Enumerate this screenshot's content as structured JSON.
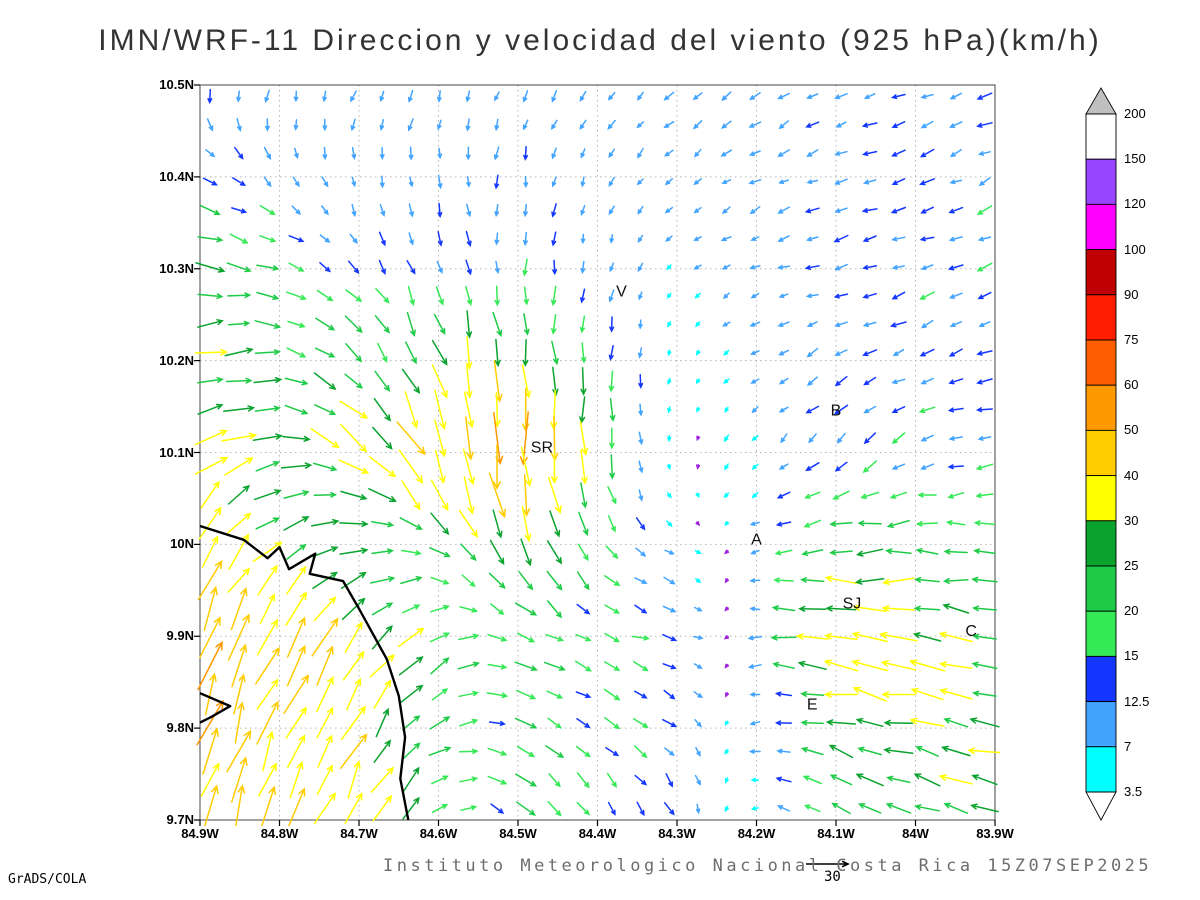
{
  "page": {
    "title": "IMN/WRF-11 Direccion y velocidad del viento (925 hPa)(km/h)",
    "caption": "Instituto Meteorologico Nacional Costa Rica 15Z07SEP2025",
    "credit": "GrADS/COLA"
  },
  "chart_data": {
    "type": "vector_field",
    "title": "IMN/WRF-11 Direccion y velocidad del viento (925 hPa)(km/h)",
    "model": "IMN/WRF-11",
    "variable": "Direccion y velocidad del viento",
    "level": "925 hPa",
    "units": "km/h",
    "valid_time": "15Z07SEP2025",
    "source": "Instituto Meteorologico Nacional Costa Rica",
    "x_tick_labels": [
      "84.9W",
      "84.8W",
      "84.7W",
      "84.6W",
      "84.5W",
      "84.4W",
      "84.3W",
      "84.2W",
      "84.1W",
      "84W",
      "83.9W"
    ],
    "y_tick_labels": [
      "10.5N",
      "10.4N",
      "10.3N",
      "10.2N",
      "10.1N",
      "10N",
      "9.9N",
      "9.8N",
      "9.7N"
    ],
    "lon_range_w": [
      84.9,
      83.9
    ],
    "lat_range_n": [
      9.7,
      10.5
    ],
    "colorbar": {
      "labels": [
        "200",
        "150",
        "120",
        "100",
        "90",
        "75",
        "60",
        "50",
        "40",
        "30",
        "25",
        "20",
        "15",
        "12.5",
        "7",
        "3.5"
      ],
      "segment_colors_top_to_bottom": [
        "#ffffff",
        "#9944ff",
        "#ff00ff",
        "#c00000",
        "#ff1e00",
        "#ff5e00",
        "#ff9900",
        "#ffcc00",
        "#ffff00",
        "#0aa32e",
        "#1ecb46",
        "#35e855",
        "#1437ff",
        "#42a4ff",
        "#00ffff"
      ],
      "over_color": "#c0c0c0",
      "under_color": "#ffffff"
    },
    "speed_levels": [
      3.5,
      7,
      12.5,
      15,
      20,
      25,
      30,
      40,
      50,
      60,
      75,
      90,
      100,
      120,
      150,
      200
    ],
    "speed_colors": [
      "#00ffff",
      "#42a4ff",
      "#1437ff",
      "#35e855",
      "#1ecb46",
      "#0aa32e",
      "#ffff00",
      "#ffcc00",
      "#ff9900",
      "#ff5e00",
      "#ff1e00",
      "#c00000",
      "#ff00ff",
      "#9944ff",
      "#ffffff",
      "#c0c0c0"
    ],
    "calm_color": "#a020e0",
    "reference_vector": {
      "value": 30,
      "label": "30"
    },
    "stations": [
      {
        "label": "V",
        "lon_w": 84.37,
        "lat_n": 10.27
      },
      {
        "label": "B",
        "lon_w": 84.1,
        "lat_n": 10.14
      },
      {
        "label": "SR",
        "lon_w": 84.47,
        "lat_n": 10.1
      },
      {
        "label": "A",
        "lon_w": 84.2,
        "lat_n": 10.0
      },
      {
        "label": "SJ",
        "lon_w": 84.08,
        "lat_n": 9.93
      },
      {
        "label": "C",
        "lon_w": 83.93,
        "lat_n": 9.9
      },
      {
        "label": "E",
        "lon_w": 84.13,
        "lat_n": 9.82
      }
    ],
    "wind_field_control_grid": {
      "lons_w": [
        84.9,
        84.7,
        84.5,
        84.3,
        84.1,
        83.9
      ],
      "lats_n": [
        10.5,
        10.3,
        10.1,
        9.9,
        9.7
      ],
      "u_kmh": [
        [
          -2,
          -4,
          -3,
          -8,
          -10,
          -12
        ],
        [
          28,
          8,
          0,
          -4,
          -12,
          -12
        ],
        [
          28,
          26,
          4,
          0,
          -10,
          -13
        ],
        [
          16,
          20,
          18,
          15,
          -38,
          -25
        ],
        [
          12,
          16,
          15,
          5,
          -18,
          -30
        ]
      ],
      "v_kmh": [
        [
          -12,
          -10,
          -9,
          -7,
          -5,
          -5
        ],
        [
          -4,
          -10,
          -14,
          -4,
          -3,
          -6
        ],
        [
          22,
          -24,
          -52,
          -2,
          -10,
          -2
        ],
        [
          44,
          30,
          -8,
          -4,
          4,
          5
        ],
        [
          40,
          34,
          -14,
          -12,
          10,
          6
        ]
      ]
    },
    "coastline_w_n": [
      [
        [
          84.9,
          10.02
        ],
        [
          84.845,
          10.005
        ],
        [
          84.815,
          9.985
        ],
        [
          84.8,
          9.997
        ],
        [
          84.788,
          9.973
        ],
        [
          84.755,
          9.99
        ],
        [
          84.762,
          9.968
        ],
        [
          84.72,
          9.96
        ],
        [
          84.7,
          9.93
        ],
        [
          84.665,
          9.875
        ],
        [
          84.65,
          9.835
        ],
        [
          84.642,
          9.79
        ],
        [
          84.648,
          9.745
        ],
        [
          84.638,
          9.7
        ]
      ],
      [
        [
          84.9,
          9.838
        ],
        [
          84.862,
          9.824
        ],
        [
          84.886,
          9.812
        ],
        [
          84.9,
          9.806
        ]
      ]
    ]
  }
}
